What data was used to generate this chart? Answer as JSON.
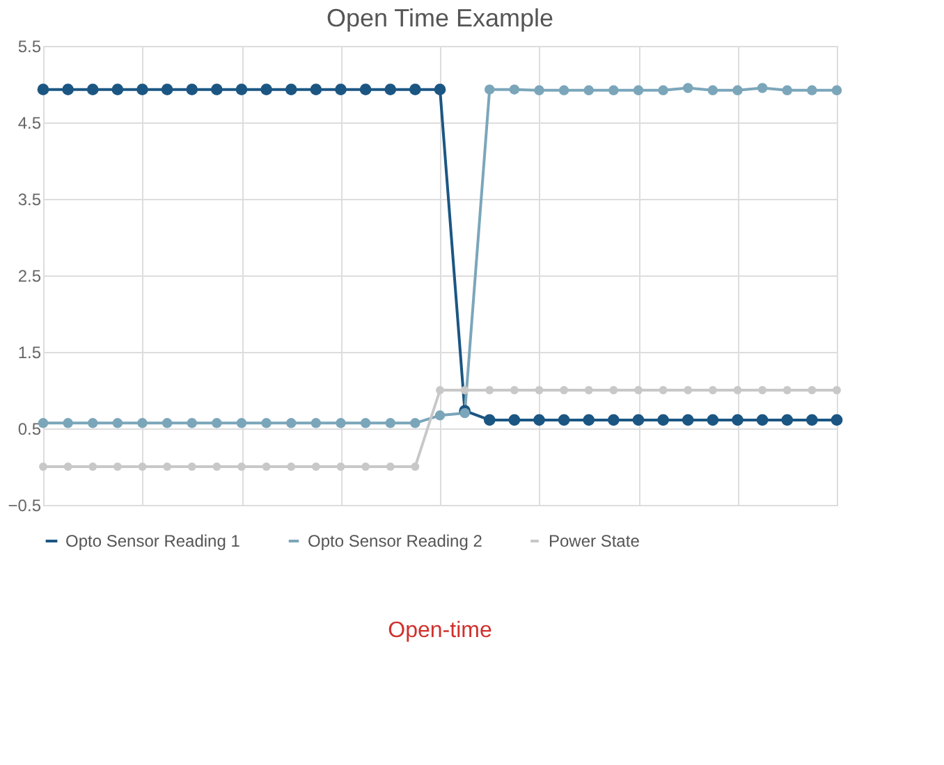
{
  "chart_data": {
    "type": "line",
    "title": "Open Time Example",
    "categories": [
      null,
      null,
      null,
      null,
      null,
      null,
      null,
      null,
      null,
      null,
      null,
      null,
      null,
      null,
      null,
      null,
      null,
      null,
      null,
      null,
      null,
      null,
      null,
      null,
      null,
      null,
      null,
      null,
      null,
      null,
      null,
      null,
      null
    ],
    "series": [
      {
        "name": "Opto Sensor Reading 1",
        "color": "#1b5683",
        "values": [
          4.93,
          4.93,
          4.93,
          4.93,
          4.93,
          4.93,
          4.93,
          4.93,
          4.93,
          4.93,
          4.93,
          4.93,
          4.93,
          4.93,
          4.93,
          4.93,
          4.93,
          0.73,
          0.61,
          0.61,
          0.61,
          0.61,
          0.61,
          0.61,
          0.61,
          0.61,
          0.61,
          0.61,
          0.61,
          0.61,
          0.61,
          0.61,
          0.61
        ]
      },
      {
        "name": "Opto Sensor Reading 2",
        "color": "#7ba6ba",
        "values": [
          0.57,
          0.57,
          0.57,
          0.57,
          0.57,
          0.57,
          0.57,
          0.57,
          0.57,
          0.57,
          0.57,
          0.57,
          0.57,
          0.57,
          0.57,
          0.57,
          0.67,
          0.7,
          4.93,
          4.93,
          4.92,
          4.92,
          4.92,
          4.92,
          4.92,
          4.92,
          4.95,
          4.92,
          4.92,
          4.95,
          4.92,
          4.92,
          4.92
        ]
      },
      {
        "name": "Power State",
        "color": "#c8c8c8",
        "values": [
          0,
          0,
          0,
          0,
          0,
          0,
          0,
          0,
          0,
          0,
          0,
          0,
          0,
          0,
          0,
          0,
          1.0,
          1.0,
          1.0,
          1.0,
          1.0,
          1.0,
          1.0,
          1.0,
          1.0,
          1.0,
          1.0,
          1.0,
          1.0,
          1.0,
          1.0,
          1.0,
          1.0
        ]
      }
    ],
    "ylim": [
      -0.5,
      5.5
    ],
    "yticks": [
      -0.5,
      0.5,
      1.5,
      2.5,
      3.5,
      4.5,
      5.5
    ],
    "grid": true,
    "legend": "bottom",
    "marker": "circle",
    "line_style": "solid",
    "tick_labels": "y",
    "annotations": [
      "Open-time"
    ]
  }
}
